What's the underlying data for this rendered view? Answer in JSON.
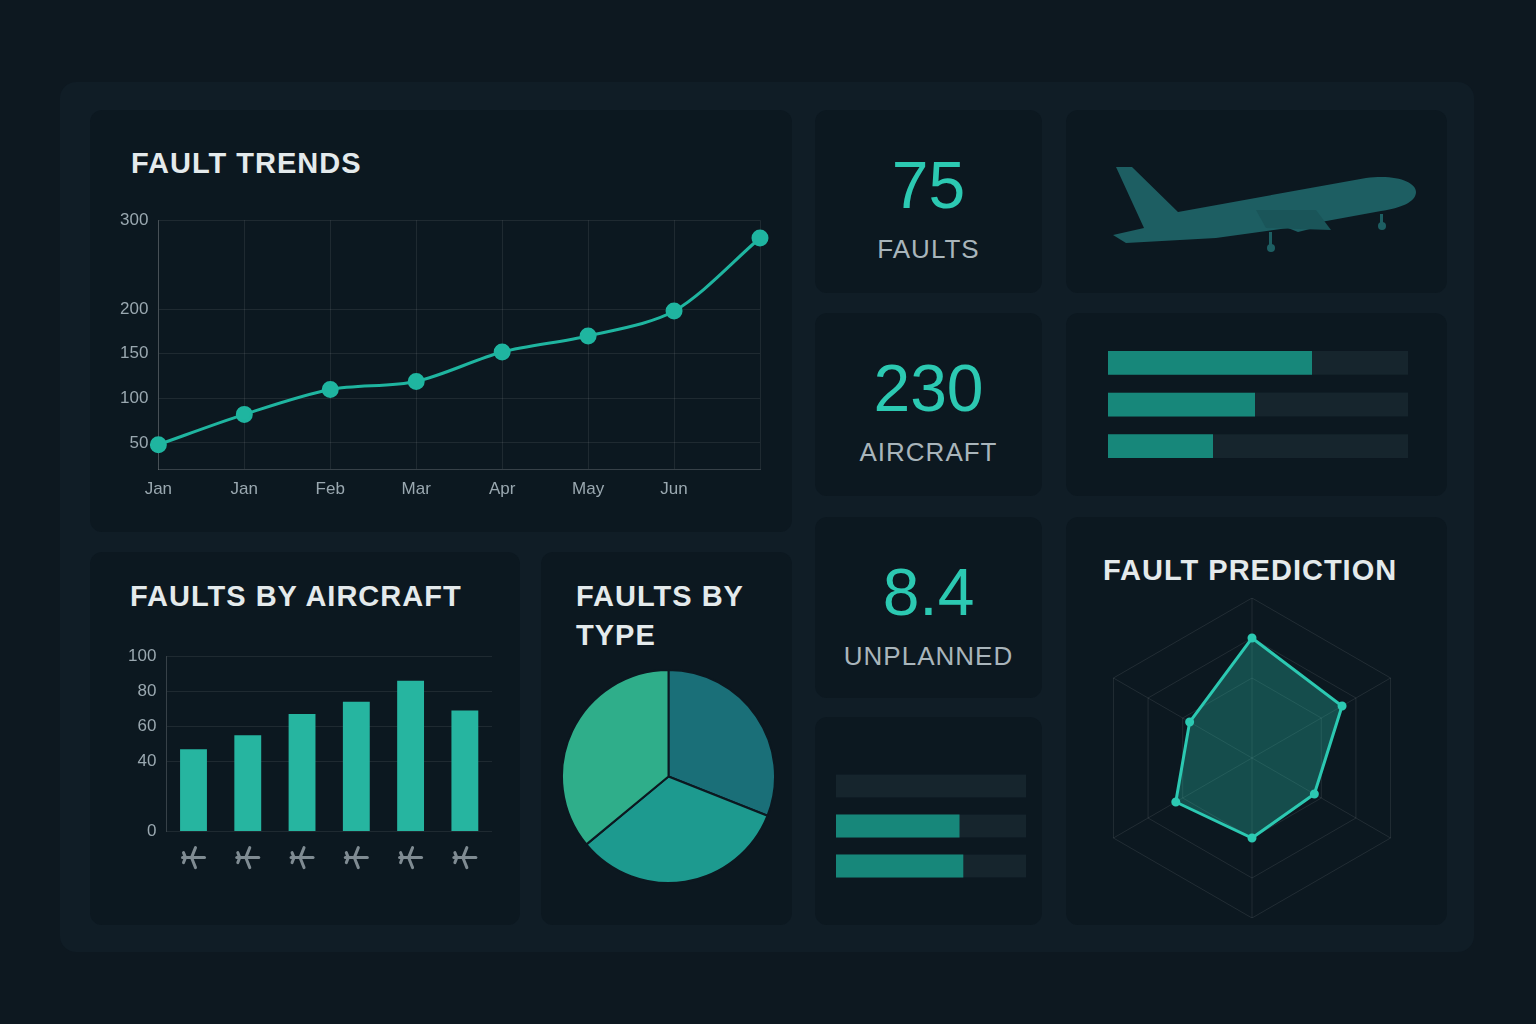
{
  "chart_data": [
    {
      "type": "line",
      "title": "FAULT TRENDS",
      "categories": [
        "Jan",
        "Jan",
        "Feb",
        "Mar",
        "Apr",
        "May",
        "Jun",
        null
      ],
      "values": [
        48,
        82,
        110,
        119,
        152,
        170,
        198,
        280
      ],
      "color": "#1fb5a0",
      "ylim": [
        20,
        300
      ],
      "yticks": [
        50,
        100,
        150,
        200,
        300
      ],
      "grid": true,
      "marker": "circle"
    },
    {
      "type": "bar",
      "title": "FAULTS BY AIRCRAFT",
      "categories": [
        null,
        null,
        null,
        null,
        null,
        null
      ],
      "values": [
        47,
        55,
        67,
        74,
        86,
        69
      ],
      "color": "#26b5a0",
      "ylim": [
        0,
        100
      ],
      "yticks": [
        0,
        40,
        60,
        80,
        100
      ],
      "grid": true
    },
    {
      "type": "pie",
      "title": "FAULTS BY TYPE",
      "categories": [
        null,
        null,
        null
      ],
      "values": [
        31,
        33,
        36
      ],
      "colors": [
        "#1a6f78",
        "#1d9a8f",
        "#2fae8a"
      ]
    },
    {
      "type": "bar",
      "orientation": "horizontal",
      "categories": [
        null,
        null,
        null
      ],
      "values": [
        68,
        49,
        35
      ],
      "color": "#17877a",
      "xlim": [
        0,
        100
      ],
      "tick_labels": false
    },
    {
      "type": "bar",
      "orientation": "horizontal",
      "categories": [
        null,
        null,
        null
      ],
      "values": [
        0,
        65,
        67
      ],
      "color": "#17877a",
      "xlim": [
        0,
        100
      ],
      "tick_labels": false
    },
    {
      "type": "radar",
      "title": "FAULT PREDICTION",
      "categories": [
        null,
        null,
        null,
        null,
        null,
        null
      ],
      "values": [
        75,
        65,
        45,
        50,
        55,
        45
      ],
      "color": "#2cc9b2",
      "rlim": [
        0,
        100
      ],
      "rticks": [
        25,
        50,
        75,
        100
      ],
      "tick_labels": false
    }
  ],
  "kpis": [
    {
      "value": 75,
      "label": "FAULTS"
    },
    {
      "value": 230,
      "label": "AIRCRAFT"
    },
    {
      "value": 8.4,
      "label": "UNPLANNED"
    }
  ]
}
